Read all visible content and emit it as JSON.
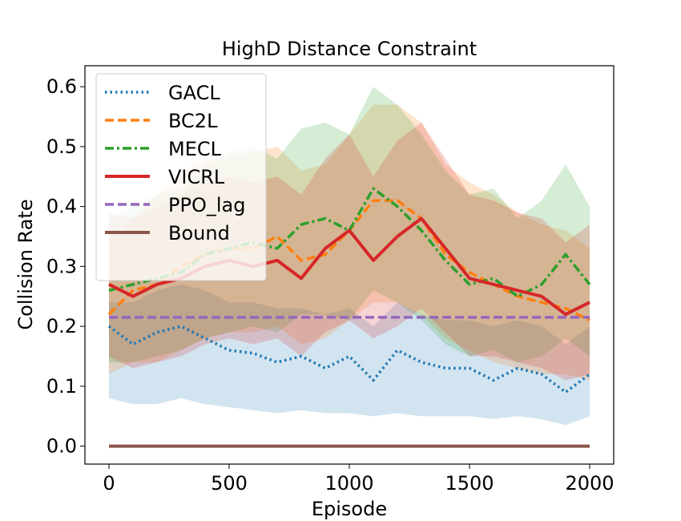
{
  "chart_data": {
    "type": "line",
    "title": "HighD Distance Constraint",
    "xlabel": "Episode",
    "ylabel": "Collision Rate",
    "xlim": [
      -100,
      2100
    ],
    "ylim": [
      -0.03,
      0.635
    ],
    "x_ticks": [
      0,
      500,
      1000,
      1500,
      2000
    ],
    "x_tick_labels": [
      "0",
      "500",
      "1000",
      "1500",
      "2000"
    ],
    "y_ticks": [
      0.0,
      0.1,
      0.2,
      0.3,
      0.4,
      0.5,
      0.6
    ],
    "y_tick_labels": [
      "0.0",
      "0.1",
      "0.2",
      "0.3",
      "0.4",
      "0.5",
      "0.6"
    ],
    "legend_position": "upper-left",
    "x": [
      0,
      100,
      200,
      300,
      400,
      500,
      600,
      700,
      800,
      900,
      1000,
      1100,
      1200,
      1300,
      1400,
      1500,
      1600,
      1700,
      1800,
      1900,
      2000
    ],
    "series": [
      {
        "name": "GACL",
        "color": "#1f77b4",
        "style": "dotted",
        "values": [
          0.2,
          0.17,
          0.19,
          0.2,
          0.18,
          0.16,
          0.155,
          0.14,
          0.15,
          0.13,
          0.15,
          0.11,
          0.16,
          0.14,
          0.13,
          0.13,
          0.11,
          0.13,
          0.12,
          0.09,
          0.12
        ],
        "band_lower": [
          0.08,
          0.07,
          0.07,
          0.08,
          0.07,
          0.065,
          0.06,
          0.055,
          0.06,
          0.055,
          0.055,
          0.05,
          0.055,
          0.05,
          0.05,
          0.05,
          0.045,
          0.05,
          0.045,
          0.035,
          0.05
        ],
        "band_upper": [
          0.24,
          0.24,
          0.26,
          0.27,
          0.26,
          0.24,
          0.24,
          0.23,
          0.23,
          0.22,
          0.23,
          0.2,
          0.24,
          0.22,
          0.21,
          0.21,
          0.2,
          0.21,
          0.2,
          0.17,
          0.2
        ]
      },
      {
        "name": "BC2L",
        "color": "#ff7f0e",
        "style": "dashed",
        "values": [
          0.22,
          0.26,
          0.27,
          0.3,
          0.32,
          0.33,
          0.33,
          0.35,
          0.31,
          0.32,
          0.36,
          0.41,
          0.41,
          0.38,
          0.32,
          0.29,
          0.27,
          0.25,
          0.24,
          0.23,
          0.21
        ],
        "band_lower": [
          0.12,
          0.14,
          0.14,
          0.16,
          0.18,
          0.19,
          0.19,
          0.2,
          0.17,
          0.18,
          0.21,
          0.24,
          0.24,
          0.22,
          0.18,
          0.16,
          0.14,
          0.13,
          0.12,
          0.12,
          0.11
        ],
        "band_upper": [
          0.34,
          0.38,
          0.42,
          0.46,
          0.48,
          0.48,
          0.49,
          0.5,
          0.46,
          0.47,
          0.52,
          0.57,
          0.57,
          0.54,
          0.47,
          0.44,
          0.42,
          0.39,
          0.37,
          0.36,
          0.33
        ]
      },
      {
        "name": "MECL",
        "color": "#2ca02c",
        "style": "dashdot",
        "values": [
          0.26,
          0.27,
          0.28,
          0.29,
          0.32,
          0.33,
          0.34,
          0.33,
          0.37,
          0.38,
          0.36,
          0.43,
          0.4,
          0.36,
          0.31,
          0.27,
          0.28,
          0.25,
          0.27,
          0.32,
          0.27
        ],
        "band_lower": [
          0.14,
          0.14,
          0.15,
          0.16,
          0.18,
          0.19,
          0.2,
          0.19,
          0.22,
          0.22,
          0.21,
          0.26,
          0.24,
          0.21,
          0.17,
          0.15,
          0.16,
          0.14,
          0.15,
          0.18,
          0.15
        ],
        "band_upper": [
          0.38,
          0.4,
          0.42,
          0.43,
          0.47,
          0.49,
          0.5,
          0.48,
          0.53,
          0.54,
          0.52,
          0.6,
          0.57,
          0.52,
          0.46,
          0.42,
          0.43,
          0.38,
          0.41,
          0.47,
          0.4
        ]
      },
      {
        "name": "VICRL",
        "color": "#d62728",
        "style": "solid",
        "values": [
          0.27,
          0.25,
          0.27,
          0.28,
          0.3,
          0.31,
          0.3,
          0.31,
          0.28,
          0.33,
          0.36,
          0.31,
          0.35,
          0.38,
          0.33,
          0.28,
          0.27,
          0.26,
          0.25,
          0.22,
          0.24
        ],
        "band_lower": [
          0.15,
          0.13,
          0.14,
          0.15,
          0.17,
          0.18,
          0.17,
          0.18,
          0.15,
          0.19,
          0.21,
          0.18,
          0.2,
          0.23,
          0.19,
          0.15,
          0.15,
          0.14,
          0.13,
          0.11,
          0.12
        ],
        "band_upper": [
          0.39,
          0.38,
          0.4,
          0.42,
          0.44,
          0.45,
          0.44,
          0.45,
          0.42,
          0.48,
          0.52,
          0.45,
          0.51,
          0.54,
          0.48,
          0.42,
          0.41,
          0.39,
          0.38,
          0.34,
          0.37
        ]
      },
      {
        "name": "PPO_lag",
        "color": "#9467bd",
        "style": "dashed",
        "values": [
          0.215,
          0.215,
          0.215,
          0.215,
          0.215,
          0.215,
          0.215,
          0.215,
          0.215,
          0.215,
          0.215,
          0.215,
          0.215,
          0.215,
          0.215,
          0.215,
          0.215,
          0.215,
          0.215,
          0.215,
          0.215
        ]
      },
      {
        "name": "Bound",
        "color": "#8c564b",
        "style": "solid",
        "values": [
          0.0,
          0.0,
          0.0,
          0.0,
          0.0,
          0.0,
          0.0,
          0.0,
          0.0,
          0.0,
          0.0,
          0.0,
          0.0,
          0.0,
          0.0,
          0.0,
          0.0,
          0.0,
          0.0,
          0.0,
          0.0
        ]
      }
    ]
  }
}
